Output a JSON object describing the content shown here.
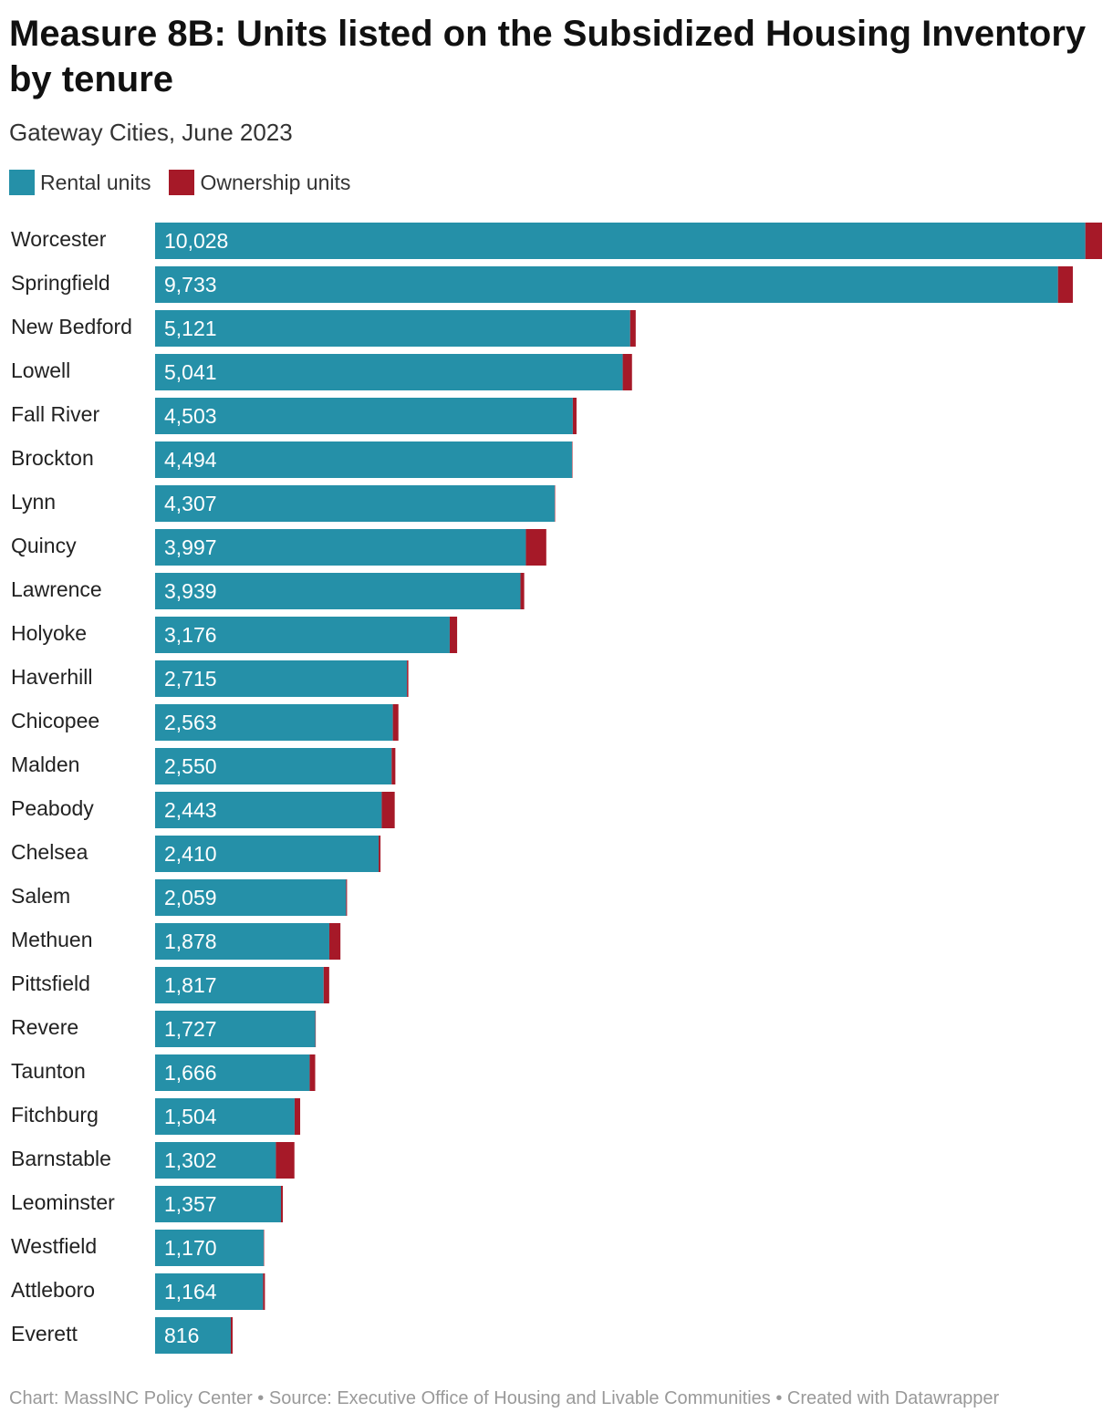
{
  "chart_data": {
    "type": "bar",
    "orientation": "horizontal",
    "stacked": true,
    "title": "Measure 8B: Units listed on the Subsidized Housing Inventory by tenure",
    "subtitle": "Gateway Cities, June 2023",
    "categories": [
      "Worcester",
      "Springfield",
      "New Bedford",
      "Lowell",
      "Fall River",
      "Brockton",
      "Lynn",
      "Quincy",
      "Lawrence",
      "Holyoke",
      "Haverhill",
      "Chicopee",
      "Malden",
      "Peabody",
      "Chelsea",
      "Salem",
      "Methuen",
      "Pittsfield",
      "Revere",
      "Taunton",
      "Fitchburg",
      "Barnstable",
      "Leominster",
      "Westfield",
      "Attleboro",
      "Everett"
    ],
    "series": [
      {
        "name": "Rental units",
        "color": "#2590a8",
        "values": [
          10028,
          9733,
          5121,
          5041,
          4503,
          4494,
          4307,
          3997,
          3939,
          3176,
          2715,
          2563,
          2550,
          2443,
          2410,
          2059,
          1878,
          1817,
          1727,
          1666,
          1504,
          1302,
          1357,
          1170,
          1164,
          816
        ]
      },
      {
        "name": "Ownership units",
        "color": "#a61928",
        "values": [
          180,
          160,
          60,
          100,
          40,
          5,
          5,
          220,
          40,
          80,
          15,
          60,
          40,
          140,
          20,
          10,
          120,
          60,
          5,
          60,
          60,
          200,
          20,
          5,
          20,
          20
        ]
      }
    ],
    "data_labels_series": "Rental units",
    "xlim": [
      0,
      10208
    ],
    "grid": false,
    "legend": "top-left"
  },
  "footer": "Chart: MassINC Policy Center • Source: Executive Office of Housing and Livable Communities • Created with Datawrapper"
}
